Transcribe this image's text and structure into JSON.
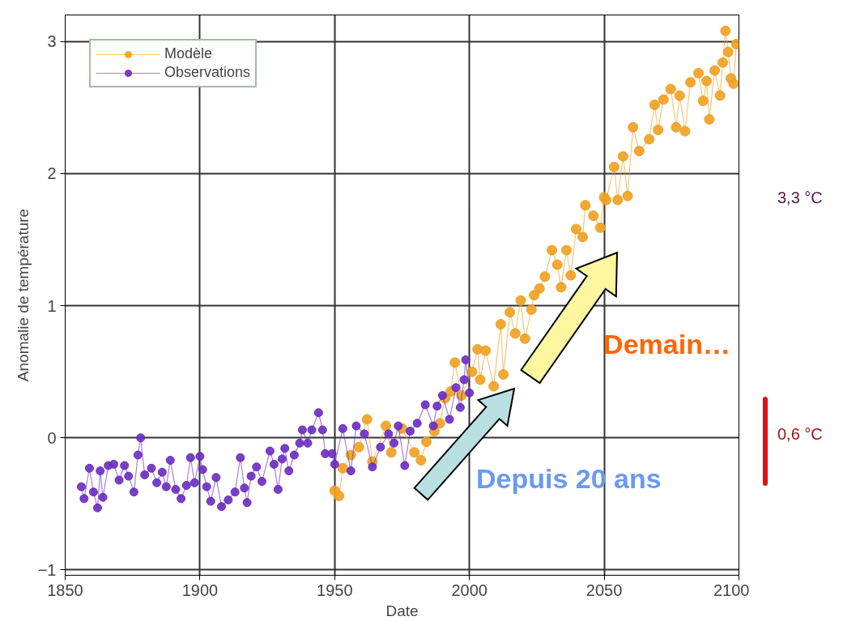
{
  "chart_data": {
    "type": "line",
    "xlabel": "Date",
    "ylabel": "Anomalie de température",
    "xlim": [
      1850,
      2100
    ],
    "ylim": [
      -1.04,
      3.2
    ],
    "xticks": [
      1850,
      1900,
      1950,
      2000,
      2050,
      2100
    ],
    "yticks": [
      -1,
      0,
      1,
      2,
      3
    ],
    "grid": true,
    "legend": "top left",
    "marker": "circle",
    "line_style": "solid",
    "series": [
      {
        "name": "Modèle",
        "color": "#f0a020",
        "x": [
          1950,
          1951.6,
          1953,
          1956,
          1959,
          1962,
          1964,
          1969,
          1971,
          1975,
          1979.6,
          1982,
          1984,
          1987,
          1989,
          1991,
          1993,
          1994.6,
          1997,
          2001,
          2003,
          2004,
          2006,
          2009,
          2011.6,
          2012.6,
          2015,
          2017,
          2019,
          2020.6,
          2023,
          2024,
          2026,
          2028,
          2030.6,
          2032.6,
          2034,
          2036,
          2037.6,
          2039.6,
          2042,
          2043,
          2046,
          2048.6,
          2050,
          2050.7,
          2053.7,
          2055,
          2057,
          2058.7,
          2060.7,
          2063,
          2066.7,
          2068.7,
          2070,
          2072,
          2074.7,
          2076.7,
          2078,
          2080,
          2082,
          2085,
          2086.7,
          2088,
          2089,
          2091,
          2093,
          2094,
          2095,
          2096,
          2097,
          2098,
          2099
        ],
        "values": [
          -0.4,
          -0.44,
          -0.23,
          -0.13,
          -0.07,
          0.14,
          -0.18,
          0.09,
          -0.11,
          0.07,
          -0.11,
          -0.17,
          -0.03,
          0.05,
          0.11,
          0.3,
          0.35,
          0.57,
          0.32,
          0.5,
          0.67,
          0.44,
          0.66,
          0.39,
          0.86,
          0.48,
          0.95,
          0.79,
          1.04,
          0.75,
          0.97,
          1.08,
          1.13,
          1.22,
          1.42,
          1.31,
          1.14,
          1.42,
          1.23,
          1.58,
          1.52,
          1.76,
          1.68,
          1.59,
          1.82,
          1.8,
          2.05,
          1.8,
          2.13,
          1.83,
          2.35,
          2.17,
          2.26,
          2.52,
          2.33,
          2.56,
          2.64,
          2.35,
          2.59,
          2.32,
          2.69,
          2.76,
          2.55,
          2.7,
          2.41,
          2.78,
          2.59,
          2.84,
          3.08,
          2.92,
          2.72,
          2.68,
          2.98
        ]
      },
      {
        "name": "Observations",
        "color": "#6a2cc0",
        "x": [
          1856,
          1857,
          1859,
          1860.5,
          1862,
          1863,
          1864,
          1866,
          1868,
          1870,
          1872,
          1873.5,
          1875.5,
          1877,
          1878,
          1879.5,
          1882,
          1884,
          1886,
          1887.5,
          1889,
          1891,
          1893,
          1895,
          1896.5,
          1898,
          1900,
          1901,
          1902.5,
          1904,
          1906,
          1908,
          1910.5,
          1913,
          1915,
          1916.5,
          1917.5,
          1919,
          1921,
          1923,
          1926,
          1927.5,
          1929,
          1930.5,
          1931.5,
          1933,
          1935,
          1937,
          1938,
          1940,
          1941.5,
          1944,
          1945.5,
          1946.5,
          1949,
          1950,
          1953,
          1956,
          1958,
          1961,
          1964,
          1967,
          1970,
          1972,
          1973.6,
          1976,
          1978,
          1980.6,
          1983.6,
          1986.6,
          1988,
          1990,
          1992.6,
          1995,
          1996.6,
          1998,
          1998.6,
          2000
        ],
        "values": [
          -0.37,
          -0.46,
          -0.23,
          -0.41,
          -0.53,
          -0.25,
          -0.45,
          -0.21,
          -0.2,
          -0.32,
          -0.21,
          -0.29,
          -0.41,
          -0.13,
          0.0,
          -0.28,
          -0.23,
          -0.34,
          -0.26,
          -0.37,
          -0.17,
          -0.39,
          -0.46,
          -0.36,
          -0.15,
          -0.34,
          -0.14,
          -0.24,
          -0.37,
          -0.48,
          -0.3,
          -0.52,
          -0.47,
          -0.41,
          -0.15,
          -0.38,
          -0.49,
          -0.29,
          -0.22,
          -0.33,
          -0.1,
          -0.2,
          -0.39,
          -0.16,
          -0.08,
          -0.25,
          -0.13,
          -0.04,
          0.06,
          -0.04,
          0.06,
          0.19,
          0.06,
          -0.12,
          -0.12,
          -0.2,
          0.07,
          -0.25,
          0.09,
          0.03,
          -0.22,
          -0.07,
          0.03,
          -0.04,
          0.09,
          -0.21,
          0.05,
          0.11,
          0.25,
          0.09,
          0.24,
          0.32,
          0.14,
          0.38,
          0.23,
          0.44,
          0.59,
          0.34
        ]
      }
    ],
    "annotations": [
      "Demain…",
      "Depuis 20 ans",
      "3,3 °C",
      "0,6 °C"
    ]
  }
}
